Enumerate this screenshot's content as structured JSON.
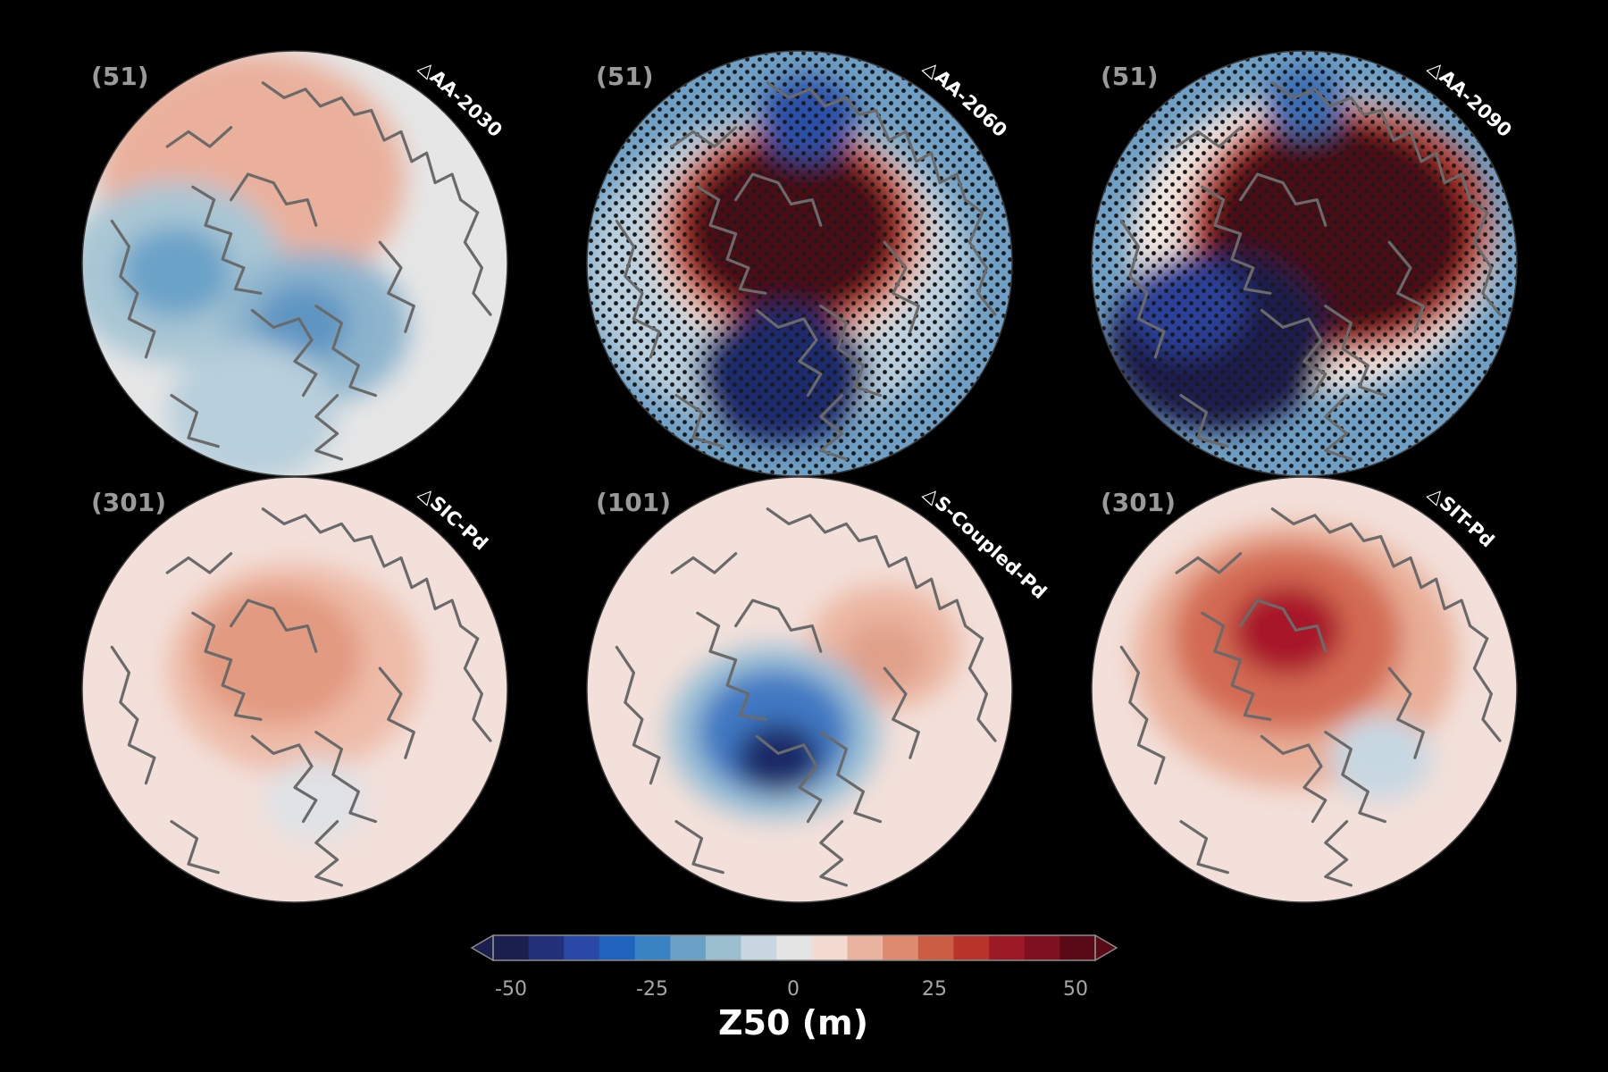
{
  "figure": {
    "colorbar": {
      "label": "Z50 (m)",
      "ticks": [
        "-50",
        "-25",
        "0",
        "25",
        "50"
      ],
      "range": [
        -50,
        50
      ],
      "extend": "both",
      "colors": [
        "#1b1f4e",
        "#23307a",
        "#2a49a6",
        "#1f63bf",
        "#3a83c3",
        "#6aa0c6",
        "#9cbfd0",
        "#c8d6df",
        "#e4e4e4",
        "#f3dbd2",
        "#e9b3a0",
        "#dd8a70",
        "#cc5d45",
        "#b8342b",
        "#9c1a26",
        "#7e1020",
        "#5a0a16"
      ]
    },
    "panels": [
      {
        "count": "(51)",
        "name": "△AA-2030",
        "stippled": false,
        "tint": "#e6e6e6",
        "blobs": [
          {
            "c": "#6d0f1e",
            "w": [
              0.4,
              0.3
            ],
            "s": 0.17
          },
          {
            "c": "#c9402e",
            "w": [
              0.4,
              0.3
            ],
            "s": 0.27
          },
          {
            "c": "#eab09c",
            "w": [
              0.4,
              0.3
            ],
            "s": 0.36
          },
          {
            "c": "#a9c6d4",
            "w": [
              0.22,
              0.52
            ],
            "s": 0.26
          },
          {
            "c": "#6aa2c8",
            "w": [
              0.22,
              0.52
            ],
            "s": 0.13
          },
          {
            "c": "#8db4cd",
            "w": [
              0.55,
              0.65
            ],
            "s": 0.22
          },
          {
            "c": "#5f95c2",
            "w": [
              0.52,
              0.64
            ],
            "s": 0.11
          },
          {
            "c": "#b8cfdc",
            "w": [
              0.4,
              0.85
            ],
            "s": 0.2
          }
        ]
      },
      {
        "count": "(51)",
        "name": "△AA-2060",
        "stippled": true,
        "tint": "#6f9fc4",
        "blobs": [
          {
            "c": "#b9cfdd",
            "w": [
              0.45,
              0.52
            ],
            "s": 0.45
          },
          {
            "c": "#f2d6c8",
            "w": [
              0.48,
              0.44
            ],
            "s": 0.33
          },
          {
            "c": "#c8402d",
            "w": [
              0.48,
              0.42
            ],
            "s": 0.3
          },
          {
            "c": "#4a0a14",
            "w": [
              0.48,
              0.42
            ],
            "s": 0.25
          },
          {
            "c": "#1e2c6e",
            "w": [
              0.46,
              0.76
            ],
            "s": 0.2
          },
          {
            "c": "#2a4fa8",
            "w": [
              0.52,
              0.16
            ],
            "s": 0.12
          }
        ]
      },
      {
        "count": "(51)",
        "name": "△AA-2090",
        "stippled": true,
        "tint": "#6f9fc4",
        "blobs": [
          {
            "c": "#f3e6e0",
            "w": [
              0.52,
              0.45
            ],
            "s": 0.43
          },
          {
            "c": "#c83a2c",
            "w": [
              0.58,
              0.42
            ],
            "s": 0.36
          },
          {
            "c": "#4a0a14",
            "w": [
              0.58,
              0.42
            ],
            "s": 0.31
          },
          {
            "c": "#1b1f4e",
            "w": [
              0.3,
              0.68
            ],
            "s": 0.26
          },
          {
            "c": "#2a3f9a",
            "w": [
              0.22,
              0.6
            ],
            "s": 0.14
          },
          {
            "c": "#3b6db4",
            "w": [
              0.5,
              0.12
            ],
            "s": 0.1
          }
        ]
      },
      {
        "count": "(301)",
        "name": "△SIC-Pd",
        "stippled": false,
        "tint": "#f3e0da",
        "blobs": [
          {
            "c": "#eebca9",
            "w": [
              0.5,
              0.45
            ],
            "s": 0.3
          },
          {
            "c": "#e29a80",
            "w": [
              0.46,
              0.42
            ],
            "s": 0.2
          },
          {
            "c": "#dfe2e6",
            "w": [
              0.55,
              0.76
            ],
            "s": 0.12
          }
        ]
      },
      {
        "count": "(101)",
        "name": "△S-Coupled-Pd",
        "stippled": false,
        "tint": "#f3e0da",
        "blobs": [
          {
            "c": "#ecb7a3",
            "w": [
              0.7,
              0.4
            ],
            "s": 0.18
          },
          {
            "c": "#e0a08a",
            "w": [
              0.7,
              0.42
            ],
            "s": 0.1
          },
          {
            "c": "#9cc1d6",
            "w": [
              0.44,
              0.6
            ],
            "s": 0.25
          },
          {
            "c": "#3f78c2",
            "w": [
              0.44,
              0.6
            ],
            "s": 0.18
          },
          {
            "c": "#1b2a68",
            "w": [
              0.45,
              0.66
            ],
            "s": 0.1
          }
        ]
      },
      {
        "count": "(301)",
        "name": "△SIT-Pd",
        "stippled": false,
        "tint": "#f3e0da",
        "blobs": [
          {
            "c": "#e9ae97",
            "w": [
              0.48,
              0.42
            ],
            "s": 0.38
          },
          {
            "c": "#d36a52",
            "w": [
              0.46,
              0.38
            ],
            "s": 0.27
          },
          {
            "c": "#a8182a",
            "w": [
              0.46,
              0.36
            ],
            "s": 0.13
          },
          {
            "c": "#c7d7e2",
            "w": [
              0.68,
              0.66
            ],
            "s": 0.12
          }
        ]
      }
    ]
  }
}
